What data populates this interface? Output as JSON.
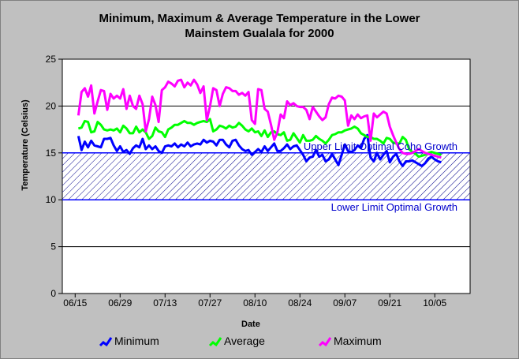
{
  "chart_data": {
    "type": "line",
    "title": "Minimum, Maximum & Average Temperature in the Lower\nMainstem Gualala for 2000",
    "xlabel": "Date",
    "ylabel": "Temperature (Celsius)",
    "ylim": [
      0,
      25
    ],
    "yticks": [
      0,
      5,
      10,
      15,
      20,
      25
    ],
    "xlim": [
      0,
      127
    ],
    "xtick_days": [
      4,
      18,
      32,
      46,
      60,
      74,
      88,
      102,
      116
    ],
    "xtick_labels": [
      "06/15",
      "06/29",
      "07/13",
      "07/27",
      "08/10",
      "08/24",
      "09/07",
      "09/21",
      "10/05"
    ],
    "grid": true,
    "legend_position": "bottom",
    "annotations": {
      "upper": "Upper Limit Optimal Coho Growth",
      "lower": "Lower Limit Optimal Growth"
    },
    "optimal_band": [
      10,
      15
    ],
    "series": [
      {
        "name": "Minimum",
        "color": "#0000ff",
        "x": [
          5,
          6,
          7,
          8,
          9,
          10,
          11,
          12,
          13,
          14,
          15,
          16,
          17,
          18,
          19,
          20,
          21,
          22,
          23,
          24,
          25,
          26,
          27,
          28,
          29,
          30,
          31,
          32,
          33,
          34,
          35,
          36,
          37,
          38,
          39,
          40,
          41,
          42,
          43,
          44,
          45,
          46,
          47,
          48,
          49,
          50,
          51,
          52,
          53,
          54,
          55,
          56,
          57,
          58,
          59,
          60,
          61,
          62,
          63,
          64,
          65,
          66,
          67,
          68,
          69,
          70,
          71,
          72,
          73,
          74,
          75,
          76,
          77,
          78,
          79,
          80,
          81,
          82,
          83,
          84,
          85,
          86,
          87,
          88,
          89,
          90,
          91,
          92,
          93,
          94,
          95,
          96,
          97,
          98,
          99,
          100,
          101,
          102,
          103,
          104,
          105,
          106,
          107,
          108,
          109,
          110,
          111,
          112,
          113,
          114,
          115,
          116,
          117,
          118
        ],
        "values": [
          16.8,
          15.3,
          16.2,
          15.6,
          16.3,
          15.8,
          15.7,
          15.6,
          16.5,
          16.5,
          16.6,
          15.8,
          15.2,
          15.7,
          15.1,
          15.3,
          14.9,
          15.5,
          15.8,
          15.6,
          16.5,
          15.4,
          15.8,
          15.4,
          15.7,
          15.2,
          15.0,
          15.7,
          15.8,
          15.7,
          16.0,
          15.6,
          15.9,
          15.7,
          16.1,
          15.7,
          15.9,
          16.0,
          15.9,
          16.4,
          16.1,
          16.3,
          16.2,
          15.8,
          16.4,
          16.4,
          15.9,
          15.6,
          16.3,
          16.4,
          15.8,
          15.4,
          15.2,
          15.3,
          14.8,
          15.1,
          15.4,
          15.1,
          15.7,
          15.2,
          15.6,
          16.0,
          15.2,
          15.2,
          15.5,
          15.9,
          15.4,
          15.7,
          15.8,
          15.3,
          14.8,
          14.1,
          14.5,
          14.6,
          15.3,
          14.6,
          14.8,
          14.1,
          14.3,
          14.9,
          14.3,
          13.7,
          14.8,
          15.9,
          15.2,
          15.1,
          15.3,
          15.8,
          15.5,
          16.5,
          16.9,
          14.5,
          14.1,
          15.0,
          14.3,
          14.8,
          15.2,
          14.0,
          14.6,
          14.9,
          14.1,
          13.6,
          14.1,
          14.1,
          14.2,
          14.0,
          13.8,
          13.6,
          13.9,
          14.4,
          14.6,
          14.3,
          14.1,
          14.0
        ],
        "note": "approximate readings"
      },
      {
        "name": "Average",
        "color": "#00ff00",
        "x": [
          5,
          6,
          7,
          8,
          9,
          10,
          11,
          12,
          13,
          14,
          15,
          16,
          17,
          18,
          19,
          20,
          21,
          22,
          23,
          24,
          25,
          26,
          27,
          28,
          29,
          30,
          31,
          32,
          33,
          34,
          35,
          36,
          37,
          38,
          39,
          40,
          41,
          42,
          43,
          44,
          45,
          46,
          47,
          48,
          49,
          50,
          51,
          52,
          53,
          54,
          55,
          56,
          57,
          58,
          59,
          60,
          61,
          62,
          63,
          64,
          65,
          66,
          67,
          68,
          69,
          70,
          71,
          72,
          73,
          74,
          75,
          76,
          77,
          78,
          79,
          80,
          81,
          82,
          83,
          84,
          85,
          86,
          87,
          88,
          89,
          90,
          91,
          92,
          93,
          94,
          95,
          96,
          97,
          98,
          99,
          100,
          101,
          102,
          103,
          104,
          105,
          106,
          107,
          108,
          109,
          110,
          111,
          112,
          113,
          114,
          115,
          116,
          117,
          118
        ],
        "values": [
          17.6,
          17.7,
          18.4,
          18.3,
          17.2,
          17.3,
          18.3,
          18.0,
          17.5,
          17.4,
          17.5,
          17.4,
          17.6,
          17.2,
          17.9,
          17.6,
          17.1,
          17.1,
          17.8,
          17.2,
          17.5,
          17.2,
          16.5,
          16.8,
          17.7,
          17.3,
          17.2,
          16.7,
          17.5,
          17.7,
          18.0,
          18.0,
          18.2,
          18.4,
          18.2,
          18.2,
          18.0,
          18.2,
          18.3,
          18.4,
          18.3,
          18.6,
          17.3,
          17.5,
          17.9,
          17.8,
          17.6,
          17.9,
          17.7,
          17.8,
          18.2,
          17.9,
          17.5,
          17.3,
          17.6,
          17.2,
          17.3,
          16.8,
          17.4,
          16.7,
          17.2,
          17.3,
          17.0,
          16.9,
          17.2,
          16.3,
          16.4,
          17.1,
          16.6,
          16.1,
          16.9,
          16.3,
          16.3,
          16.4,
          16.8,
          16.5,
          16.3,
          16.0,
          16.4,
          16.9,
          17.0,
          17.2,
          17.2,
          17.4,
          17.5,
          17.6,
          17.8,
          17.6,
          17.1,
          16.9,
          16.7,
          16.7,
          16.5,
          16.5,
          16.3,
          16.0,
          16.6,
          16.5,
          16.1,
          16.0,
          16.0,
          16.7,
          16.4,
          15.4,
          15.1,
          14.9,
          14.6,
          14.7,
          14.8,
          15.0,
          15.1,
          15.0,
          14.9,
          14.8
        ],
        "note": "approximate readings"
      },
      {
        "name": "Maximum",
        "color": "#ff00ff",
        "x": [
          5,
          6,
          7,
          8,
          9,
          10,
          11,
          12,
          13,
          14,
          15,
          16,
          17,
          18,
          19,
          20,
          21,
          22,
          23,
          24,
          25,
          26,
          27,
          28,
          29,
          30,
          31,
          32,
          33,
          34,
          35,
          36,
          37,
          38,
          39,
          40,
          41,
          42,
          43,
          44,
          45,
          46,
          47,
          48,
          49,
          50,
          51,
          52,
          53,
          54,
          55,
          56,
          57,
          58,
          59,
          60,
          61,
          62,
          63,
          64,
          65,
          66,
          67,
          68,
          69,
          70,
          71,
          72,
          73,
          74,
          75,
          76,
          77,
          78,
          79,
          80,
          81,
          82,
          83,
          84,
          85,
          86,
          87,
          88,
          89,
          90,
          91,
          92,
          93,
          94,
          95,
          96,
          97,
          98,
          99,
          100,
          101,
          102,
          103,
          104,
          105,
          106,
          107,
          108,
          109,
          110,
          111,
          112,
          113,
          114,
          115,
          116,
          117,
          118
        ],
        "values": [
          19.0,
          21.5,
          21.9,
          21.0,
          22.2,
          19.2,
          20.5,
          21.7,
          21.6,
          19.6,
          21.3,
          20.8,
          21.1,
          20.8,
          21.8,
          19.7,
          21.1,
          20.0,
          19.7,
          21.1,
          20.2,
          17.3,
          18.6,
          21.0,
          20.1,
          18.3,
          21.7,
          22.0,
          22.6,
          22.4,
          22.1,
          22.7,
          22.8,
          22.0,
          22.5,
          22.2,
          22.8,
          22.3,
          21.4,
          22.1,
          18.5,
          20.0,
          21.9,
          21.7,
          20.0,
          21.3,
          22.0,
          21.9,
          21.6,
          21.6,
          21.2,
          21.4,
          21.1,
          21.5,
          18.5,
          18.1,
          21.8,
          21.7,
          19.7,
          19.4,
          18.0,
          16.4,
          17.2,
          19.1,
          18.7,
          20.5,
          20.1,
          20.3,
          20.0,
          19.9,
          19.9,
          19.6,
          18.6,
          19.9,
          19.4,
          18.9,
          18.5,
          18.8,
          20.2,
          20.9,
          20.8,
          21.1,
          21.0,
          20.6,
          17.9,
          19.0,
          18.6,
          19.1,
          18.7,
          18.9,
          19.0,
          16.3,
          19.2,
          18.8,
          19.1,
          19.4,
          19.2,
          17.8,
          16.9,
          16.1,
          15.4,
          15.0,
          14.9,
          14.9,
          15.0,
          15.2,
          15.4,
          15.2,
          15.0,
          14.9,
          14.8,
          14.7,
          14.6,
          14.5
        ],
        "note": "approximate readings"
      }
    ]
  }
}
